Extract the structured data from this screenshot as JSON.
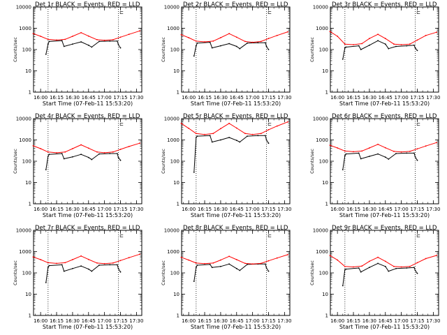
{
  "colors": {
    "events": "#000000",
    "lld": "#ff0000",
    "background": "#ffffff"
  },
  "chart_data": {
    "type": "line",
    "layout": "3x3 grid",
    "xlabel": "Start Time (07-Feb-11 15:53:20)",
    "ylabel": "Counts/sec",
    "yscale": "log",
    "ylim": [
      1,
      10000
    ],
    "ytick_labels": [
      "1",
      "10",
      "100",
      "1000",
      "10000"
    ],
    "xtick_labels": [
      "16:00",
      "16:15",
      "16:30",
      "16:45",
      "17:00",
      "17:15",
      "17:30"
    ],
    "xlim": [
      "15:53:20",
      "17:35:00"
    ],
    "markers": [
      {
        "type": "vertical-dotted-line",
        "time": "16:07"
      },
      {
        "type": "vertical-dotted-line",
        "time": "17:13"
      },
      {
        "type": "bracket",
        "symbol": "⊏",
        "time": "17:14"
      }
    ],
    "legend": [
      {
        "name": "Events",
        "color": "BLACK"
      },
      {
        "name": "LLD",
        "color": "RED"
      }
    ],
    "panels": [
      {
        "title": "Det 1r BLACK = Events, RED = LLD",
        "series": [
          {
            "name": "Events",
            "x": [
              "16:05",
              "16:07",
              "16:08",
              "16:20",
              "16:22",
              "16:30",
              "16:38",
              "16:45",
              "16:48",
              "16:55",
              "17:05",
              "17:12",
              "17:13",
              "17:15"
            ],
            "values": [
              60,
              180,
              240,
              260,
              140,
              180,
              230,
              160,
              130,
              240,
              250,
              250,
              170,
              120
            ]
          },
          {
            "name": "LLD",
            "x": [
              "15:53",
              "16:00",
              "16:07",
              "16:15",
              "16:23",
              "16:30",
              "16:38",
              "16:45",
              "16:53",
              "17:00",
              "17:08",
              "17:15",
              "17:23",
              "17:33"
            ],
            "values": [
              560,
              420,
              300,
              280,
              300,
              420,
              620,
              430,
              290,
              270,
              290,
              380,
              520,
              750
            ]
          }
        ]
      },
      {
        "title": "Det 2r BLACK = Events, RED = LLD",
        "series": [
          {
            "name": "Events",
            "x": [
              "16:05",
              "16:07",
              "16:08",
              "16:20",
              "16:22",
              "16:30",
              "16:38",
              "16:45",
              "16:48",
              "16:55",
              "17:05",
              "17:12",
              "17:13",
              "17:15"
            ],
            "values": [
              50,
              150,
              200,
              220,
              120,
              150,
              190,
              140,
              110,
              200,
              210,
              210,
              140,
              100
            ]
          },
          {
            "name": "LLD",
            "x": [
              "15:53",
              "16:00",
              "16:07",
              "16:15",
              "16:23",
              "16:30",
              "16:38",
              "16:45",
              "16:53",
              "17:00",
              "17:08",
              "17:15",
              "17:23",
              "17:33"
            ],
            "values": [
              500,
              360,
              250,
              230,
              250,
              360,
              560,
              380,
              240,
              220,
              240,
              330,
              460,
              680
            ]
          }
        ]
      },
      {
        "title": "Det 3r BLACK = Events, RED = LLD",
        "series": [
          {
            "name": "Events",
            "x": [
              "16:05",
              "16:07",
              "16:08",
              "16:20",
              "16:22",
              "16:30",
              "16:38",
              "16:45",
              "16:48",
              "16:55",
              "17:05",
              "17:12",
              "17:13",
              "17:15"
            ],
            "values": [
              35,
              120,
              130,
              150,
              100,
              160,
              260,
              180,
              110,
              140,
              150,
              160,
              120,
              90
            ]
          },
          {
            "name": "LLD",
            "x": [
              "15:53",
              "16:00",
              "16:07",
              "16:15",
              "16:23",
              "16:30",
              "16:38",
              "16:45",
              "16:53",
              "17:00",
              "17:08",
              "17:15",
              "17:23",
              "17:33"
            ],
            "values": [
              700,
              420,
              180,
              170,
              190,
              330,
              520,
              330,
              180,
              170,
              180,
              280,
              460,
              650
            ]
          }
        ]
      },
      {
        "title": "Det 4r BLACK = Events, RED = LLD",
        "series": [
          {
            "name": "Events",
            "x": [
              "16:05",
              "16:07",
              "16:08",
              "16:20",
              "16:22",
              "16:30",
              "16:38",
              "16:45",
              "16:48",
              "16:55",
              "17:05",
              "17:12",
              "17:13",
              "17:15"
            ],
            "values": [
              40,
              170,
              210,
              230,
              130,
              160,
              210,
              150,
              120,
              220,
              230,
              230,
              150,
              110
            ]
          },
          {
            "name": "LLD",
            "x": [
              "15:53",
              "16:00",
              "16:07",
              "16:15",
              "16:23",
              "16:30",
              "16:38",
              "16:45",
              "16:53",
              "17:00",
              "17:08",
              "17:15",
              "17:23",
              "17:33"
            ],
            "values": [
              530,
              390,
              270,
              250,
              270,
              390,
              590,
              410,
              270,
              250,
              270,
              360,
              490,
              700
            ]
          }
        ]
      },
      {
        "title": "Det 5r BLACK = Events, RED = LLD",
        "series": [
          {
            "name": "Events",
            "x": [
              "16:05",
              "16:07",
              "16:08",
              "16:20",
              "16:22",
              "16:30",
              "16:38",
              "16:45",
              "16:48",
              "16:55",
              "17:05",
              "17:12",
              "17:13",
              "17:15"
            ],
            "values": [
              30,
              1300,
              1500,
              1600,
              800,
              1000,
              1300,
              950,
              800,
              1500,
              1600,
              1600,
              1000,
              700
            ]
          },
          {
            "name": "LLD",
            "x": [
              "15:53",
              "16:00",
              "16:07",
              "16:15",
              "16:23",
              "16:30",
              "16:38",
              "16:45",
              "16:53",
              "17:00",
              "17:08",
              "17:15",
              "17:23",
              "17:33"
            ],
            "values": [
              6000,
              3500,
              2000,
              1800,
              2000,
              3400,
              6000,
              3600,
              2000,
              1800,
              2000,
              3000,
              4500,
              7000
            ]
          }
        ]
      },
      {
        "title": "Det 6r BLACK = Events, RED = LLD",
        "series": [
          {
            "name": "Events",
            "x": [
              "16:05",
              "16:07",
              "16:08",
              "16:20",
              "16:22",
              "16:30",
              "16:38",
              "16:45",
              "16:48",
              "16:55",
              "17:05",
              "17:12",
              "17:13",
              "17:15"
            ],
            "values": [
              40,
              180,
              220,
              240,
              130,
              170,
              220,
              155,
              125,
              230,
              240,
              240,
              160,
              110
            ]
          },
          {
            "name": "LLD",
            "x": [
              "15:53",
              "16:00",
              "16:07",
              "16:15",
              "16:23",
              "16:30",
              "16:38",
              "16:45",
              "16:53",
              "17:00",
              "17:08",
              "17:15",
              "17:23",
              "17:33"
            ],
            "values": [
              560,
              420,
              300,
              280,
              300,
              420,
              620,
              430,
              290,
              270,
              290,
              380,
              520,
              750
            ]
          }
        ]
      },
      {
        "title": "Det 7r BLACK = Events, RED = LLD",
        "series": [
          {
            "name": "Events",
            "x": [
              "16:05",
              "16:07",
              "16:08",
              "16:20",
              "16:22",
              "16:30",
              "16:38",
              "16:45",
              "16:48",
              "16:55",
              "17:05",
              "17:12",
              "17:13",
              "17:15"
            ],
            "values": [
              35,
              180,
              220,
              240,
              120,
              160,
              210,
              150,
              120,
              230,
              240,
              240,
              160,
              110
            ]
          },
          {
            "name": "LLD",
            "x": [
              "15:53",
              "16:00",
              "16:07",
              "16:15",
              "16:23",
              "16:30",
              "16:38",
              "16:45",
              "16:53",
              "17:00",
              "17:08",
              "17:15",
              "17:23",
              "17:33"
            ],
            "values": [
              560,
              420,
              300,
              280,
              300,
              420,
              620,
              430,
              290,
              270,
              290,
              380,
              520,
              750
            ]
          }
        ]
      },
      {
        "title": "Det 8r BLACK = Events, RED = LLD",
        "series": [
          {
            "name": "Events",
            "x": [
              "16:05",
              "16:07",
              "16:08",
              "16:20",
              "16:22",
              "16:30",
              "16:38",
              "16:45",
              "16:48",
              "16:55",
              "17:05",
              "17:12",
              "17:13",
              "17:15"
            ],
            "values": [
              40,
              180,
              230,
              250,
              180,
              200,
              260,
              160,
              130,
              250,
              260,
              260,
              170,
              120
            ]
          },
          {
            "name": "LLD",
            "x": [
              "15:53",
              "16:00",
              "16:07",
              "16:15",
              "16:23",
              "16:30",
              "16:38",
              "16:45",
              "16:53",
              "17:00",
              "17:08",
              "17:15",
              "17:23",
              "17:33"
            ],
            "values": [
              540,
              400,
              290,
              270,
              290,
              400,
              600,
              420,
              280,
              260,
              280,
              370,
              500,
              720
            ]
          }
        ]
      },
      {
        "title": "Det 9r BLACK = Events, RED = LLD",
        "series": [
          {
            "name": "Events",
            "x": [
              "16:05",
              "16:07",
              "16:08",
              "16:20",
              "16:22",
              "16:30",
              "16:38",
              "16:45",
              "16:48",
              "16:55",
              "17:05",
              "17:12",
              "17:13",
              "17:15"
            ],
            "values": [
              25,
              140,
              150,
              170,
              110,
              180,
              280,
              200,
              120,
              160,
              170,
              180,
              130,
              95
            ]
          },
          {
            "name": "LLD",
            "x": [
              "15:53",
              "16:00",
              "16:07",
              "16:15",
              "16:23",
              "16:30",
              "16:38",
              "16:45",
              "16:53",
              "17:00",
              "17:08",
              "17:15",
              "17:23",
              "17:33"
            ],
            "values": [
              650,
              400,
              200,
              190,
              210,
              350,
              540,
              350,
              200,
              190,
              200,
              300,
              470,
              660
            ]
          }
        ]
      }
    ]
  }
}
